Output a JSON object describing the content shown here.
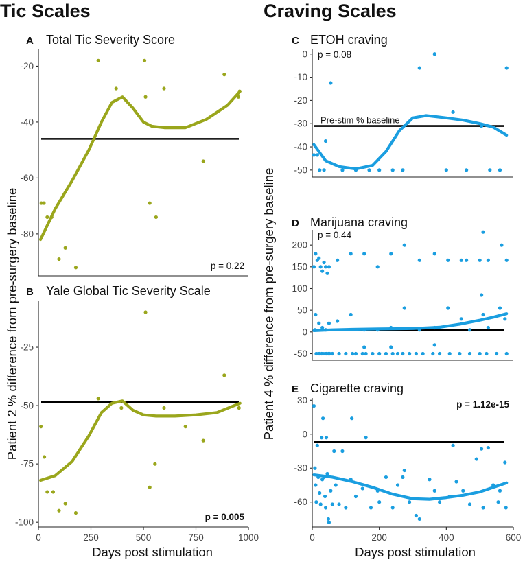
{
  "sections": {
    "left": "Tic Scales",
    "right": "Craving Scales"
  },
  "y_label_left": "Patient 2 % difference from pre-surgery baseline",
  "y_label_right": "Patient 4 % difference from pre-surgery baseline",
  "x_label": "Days post stimulation",
  "colors": {
    "olive": "#9aa61c",
    "blue": "#1a9ee0",
    "axis": "#222222",
    "ref": "#000000"
  },
  "chart_data": [
    {
      "id": "A",
      "letter": "A",
      "title": "Total Tic Severity Score",
      "type": "scatter",
      "pvalue": "p = 0.22",
      "p_pos": "bottom-right",
      "p_bold": false,
      "color": "#9aa61c",
      "xlim": [
        0,
        1000
      ],
      "ylim": [
        -95,
        -14
      ],
      "yticks": [
        -80,
        -60,
        -40,
        -20
      ],
      "ytick_labels": [
        "-80",
        "-60",
        "-40",
        "-20"
      ],
      "xticks": [],
      "xtick_labels": [],
      "baseline": -46,
      "baseline_label": "",
      "points": [
        [
          14,
          -69
        ],
        [
          26,
          -69
        ],
        [
          42,
          -74
        ],
        [
          63,
          -74
        ],
        [
          98,
          -89
        ],
        [
          128,
          -85
        ],
        [
          178,
          -92
        ],
        [
          285,
          -18
        ],
        [
          370,
          -28
        ],
        [
          505,
          -18
        ],
        [
          510,
          -31
        ],
        [
          530,
          -69
        ],
        [
          560,
          -74
        ],
        [
          598,
          -28
        ],
        [
          785,
          -54
        ],
        [
          885,
          -23
        ],
        [
          952,
          -31
        ],
        [
          958,
          -29
        ]
      ],
      "trend": [
        [
          10,
          -82
        ],
        [
          80,
          -71
        ],
        [
          160,
          -61
        ],
        [
          240,
          -50
        ],
        [
          300,
          -40
        ],
        [
          350,
          -33
        ],
        [
          400,
          -31
        ],
        [
          450,
          -35
        ],
        [
          500,
          -40
        ],
        [
          540,
          -41.5
        ],
        [
          600,
          -42
        ],
        [
          700,
          -42
        ],
        [
          800,
          -39
        ],
        [
          900,
          -34
        ],
        [
          960,
          -29
        ]
      ]
    },
    {
      "id": "B",
      "letter": "B",
      "title": "Yale Global Tic Severity Scale",
      "type": "scatter",
      "pvalue": "p = 0.005",
      "p_pos": "bottom-right",
      "p_bold": true,
      "color": "#9aa61c",
      "xlim": [
        0,
        1000
      ],
      "ylim": [
        -102,
        -5
      ],
      "yticks": [
        -100,
        -75,
        -50,
        -25
      ],
      "ytick_labels": [
        "-100",
        "-75",
        "-50",
        "-25"
      ],
      "xticks": [
        0,
        250,
        500,
        750,
        1000
      ],
      "xtick_labels": [
        "0",
        "250",
        "500",
        "750",
        "1000"
      ],
      "baseline": -48.5,
      "baseline_label": "",
      "points": [
        [
          12,
          -59
        ],
        [
          28,
          -72
        ],
        [
          42,
          -87
        ],
        [
          70,
          -87
        ],
        [
          98,
          -95
        ],
        [
          128,
          -92
        ],
        [
          178,
          -96
        ],
        [
          285,
          -47
        ],
        [
          395,
          -51
        ],
        [
          510,
          -10
        ],
        [
          530,
          -85
        ],
        [
          555,
          -75
        ],
        [
          598,
          -51
        ],
        [
          700,
          -59
        ],
        [
          785,
          -65
        ],
        [
          885,
          -37
        ],
        [
          955,
          -51
        ]
      ],
      "trend": [
        [
          10,
          -82
        ],
        [
          80,
          -80
        ],
        [
          160,
          -74
        ],
        [
          240,
          -63
        ],
        [
          300,
          -53
        ],
        [
          350,
          -49
        ],
        [
          400,
          -48
        ],
        [
          450,
          -52
        ],
        [
          500,
          -54
        ],
        [
          560,
          -54.5
        ],
        [
          650,
          -54.5
        ],
        [
          750,
          -54
        ],
        [
          850,
          -53
        ],
        [
          960,
          -49
        ]
      ]
    },
    {
      "id": "C",
      "letter": "C",
      "title": "ETOH craving",
      "type": "scatter",
      "pvalue": "p = 0.08",
      "p_pos": "top-left",
      "p_bold": false,
      "color": "#1a9ee0",
      "xlim": [
        0,
        600
      ],
      "ylim": [
        -53,
        2
      ],
      "yticks": [
        -50,
        -40,
        -30,
        -20,
        -10,
        0
      ],
      "ytick_labels": [
        "-50",
        "-40",
        "-30",
        "-20",
        "-10",
        "0"
      ],
      "xticks": [],
      "xtick_labels": [],
      "baseline": -31,
      "baseline_label": "Pre-stim % baseline",
      "points": [
        [
          5,
          -43.5
        ],
        [
          15,
          -43.5
        ],
        [
          22,
          -50
        ],
        [
          35,
          -50
        ],
        [
          40,
          -37.5
        ],
        [
          55,
          -12.5
        ],
        [
          90,
          -50
        ],
        [
          130,
          -50
        ],
        [
          170,
          -50
        ],
        [
          200,
          -50
        ],
        [
          240,
          -50
        ],
        [
          270,
          -50
        ],
        [
          320,
          -6
        ],
        [
          365,
          0
        ],
        [
          400,
          -50
        ],
        [
          420,
          -25
        ],
        [
          460,
          -50
        ],
        [
          505,
          -31
        ],
        [
          530,
          -50
        ],
        [
          560,
          -50
        ],
        [
          580,
          -6
        ]
      ],
      "trend": [
        [
          5,
          -39
        ],
        [
          40,
          -46
        ],
        [
          80,
          -48.5
        ],
        [
          130,
          -49.5
        ],
        [
          180,
          -48
        ],
        [
          220,
          -42
        ],
        [
          260,
          -33
        ],
        [
          300,
          -27.5
        ],
        [
          340,
          -26.5
        ],
        [
          400,
          -27.5
        ],
        [
          450,
          -28.5
        ],
        [
          500,
          -30
        ],
        [
          540,
          -31.5
        ],
        [
          580,
          -35
        ]
      ]
    },
    {
      "id": "D",
      "letter": "D",
      "title": "Marijuana craving",
      "type": "scatter",
      "pvalue": "p = 0.44",
      "p_pos": "top-left",
      "p_bold": false,
      "color": "#1a9ee0",
      "xlim": [
        0,
        600
      ],
      "ylim": [
        -65,
        235
      ],
      "yticks": [
        -50,
        0,
        50,
        100,
        150,
        200
      ],
      "ytick_labels": [
        "-50",
        "0",
        "50",
        "100",
        "150",
        "200"
      ],
      "xticks": [],
      "xtick_labels": [],
      "baseline": 5,
      "baseline_label": "",
      "points": [
        [
          5,
          150
        ],
        [
          10,
          180
        ],
        [
          15,
          165
        ],
        [
          20,
          170
        ],
        [
          25,
          150
        ],
        [
          30,
          140
        ],
        [
          35,
          160
        ],
        [
          40,
          150
        ],
        [
          45,
          135
        ],
        [
          50,
          150
        ],
        [
          10,
          40
        ],
        [
          20,
          20
        ],
        [
          30,
          10
        ],
        [
          40,
          5
        ],
        [
          50,
          20
        ],
        [
          8,
          5
        ],
        [
          12,
          -50
        ],
        [
          18,
          -50
        ],
        [
          22,
          -50
        ],
        [
          28,
          -50
        ],
        [
          32,
          -50
        ],
        [
          38,
          -50
        ],
        [
          42,
          -50
        ],
        [
          48,
          -50
        ],
        [
          52,
          -50
        ],
        [
          60,
          -50
        ],
        [
          80,
          -50
        ],
        [
          100,
          -50
        ],
        [
          120,
          -50
        ],
        [
          130,
          -50
        ],
        [
          150,
          -50
        ],
        [
          160,
          -50
        ],
        [
          180,
          -50
        ],
        [
          200,
          -50
        ],
        [
          220,
          -50
        ],
        [
          240,
          -50
        ],
        [
          255,
          -50
        ],
        [
          270,
          -50
        ],
        [
          290,
          -50
        ],
        [
          310,
          -50
        ],
        [
          330,
          -50
        ],
        [
          360,
          -50
        ],
        [
          380,
          -50
        ],
        [
          410,
          -50
        ],
        [
          440,
          -50
        ],
        [
          470,
          -50
        ],
        [
          500,
          -50
        ],
        [
          520,
          -50
        ],
        [
          550,
          -50
        ],
        [
          580,
          -50
        ],
        [
          75,
          165
        ],
        [
          115,
          180
        ],
        [
          155,
          180
        ],
        [
          195,
          150
        ],
        [
          235,
          180
        ],
        [
          275,
          200
        ],
        [
          320,
          165
        ],
        [
          365,
          180
        ],
        [
          405,
          165
        ],
        [
          445,
          165
        ],
        [
          460,
          165
        ],
        [
          500,
          165
        ],
        [
          510,
          230
        ],
        [
          525,
          165
        ],
        [
          565,
          200
        ],
        [
          580,
          165
        ],
        [
          75,
          25
        ],
        [
          115,
          40
        ],
        [
          155,
          -35
        ],
        [
          155,
          5
        ],
        [
          195,
          5
        ],
        [
          235,
          -35
        ],
        [
          235,
          10
        ],
        [
          275,
          55
        ],
        [
          320,
          5
        ],
        [
          365,
          -30
        ],
        [
          365,
          10
        ],
        [
          405,
          55
        ],
        [
          445,
          30
        ],
        [
          470,
          5
        ],
        [
          505,
          85
        ],
        [
          510,
          40
        ],
        [
          525,
          10
        ],
        [
          560,
          55
        ],
        [
          575,
          30
        ]
      ],
      "trend": [
        [
          5,
          3
        ],
        [
          60,
          5
        ],
        [
          120,
          6
        ],
        [
          200,
          7
        ],
        [
          300,
          8
        ],
        [
          380,
          11
        ],
        [
          440,
          18
        ],
        [
          500,
          27
        ],
        [
          540,
          34
        ],
        [
          580,
          42
        ]
      ]
    },
    {
      "id": "E",
      "letter": "E",
      "title": "Cigarette craving",
      "type": "scatter",
      "pvalue": "p = 1.12e-15",
      "p_pos": "top-right",
      "p_bold": true,
      "color": "#1a9ee0",
      "xlim": [
        0,
        600
      ],
      "ylim": [
        -82,
        32
      ],
      "yticks": [
        -60,
        -30,
        0,
        30
      ],
      "ytick_labels": [
        "-60",
        "-30",
        "0",
        "30"
      ],
      "xticks": [
        0,
        200,
        400,
        600
      ],
      "xtick_labels": [
        "0",
        "200",
        "400",
        "600"
      ],
      "baseline": -7,
      "baseline_label": "",
      "points": [
        [
          5,
          25
        ],
        [
          8,
          -30
        ],
        [
          10,
          -45
        ],
        [
          12,
          -60
        ],
        [
          15,
          -10
        ],
        [
          18,
          -38
        ],
        [
          22,
          -52
        ],
        [
          25,
          -62
        ],
        [
          28,
          -3
        ],
        [
          30,
          -40
        ],
        [
          32,
          14
        ],
        [
          35,
          -38
        ],
        [
          38,
          -55
        ],
        [
          40,
          -65
        ],
        [
          42,
          -3
        ],
        [
          45,
          -35
        ],
        [
          48,
          -75
        ],
        [
          50,
          -78
        ],
        [
          55,
          -50
        ],
        [
          60,
          -62
        ],
        [
          65,
          -15
        ],
        [
          70,
          -45
        ],
        [
          80,
          -62
        ],
        [
          90,
          -15
        ],
        [
          100,
          -65
        ],
        [
          115,
          -40
        ],
        [
          118,
          14
        ],
        [
          130,
          -55
        ],
        [
          150,
          -48
        ],
        [
          160,
          -3
        ],
        [
          175,
          -65
        ],
        [
          195,
          -50
        ],
        [
          200,
          -60
        ],
        [
          220,
          -38
        ],
        [
          240,
          -65
        ],
        [
          255,
          -45
        ],
        [
          270,
          -38
        ],
        [
          275,
          -32
        ],
        [
          290,
          -60
        ],
        [
          310,
          -72
        ],
        [
          320,
          -75
        ],
        [
          350,
          -40
        ],
        [
          365,
          -50
        ],
        [
          380,
          -60
        ],
        [
          410,
          -55
        ],
        [
          420,
          -10
        ],
        [
          430,
          -42
        ],
        [
          450,
          -50
        ],
        [
          470,
          -62
        ],
        [
          490,
          -22
        ],
        [
          505,
          -13
        ],
        [
          510,
          -65
        ],
        [
          525,
          -12
        ],
        [
          540,
          -45
        ],
        [
          555,
          -60
        ],
        [
          560,
          -50
        ],
        [
          575,
          -25
        ],
        [
          578,
          -65
        ]
      ],
      "trend": [
        [
          5,
          -36
        ],
        [
          60,
          -38
        ],
        [
          120,
          -42
        ],
        [
          180,
          -47
        ],
        [
          240,
          -53
        ],
        [
          300,
          -57
        ],
        [
          350,
          -57.5
        ],
        [
          400,
          -56
        ],
        [
          450,
          -54
        ],
        [
          500,
          -51
        ],
        [
          540,
          -47
        ],
        [
          580,
          -43
        ]
      ]
    }
  ]
}
